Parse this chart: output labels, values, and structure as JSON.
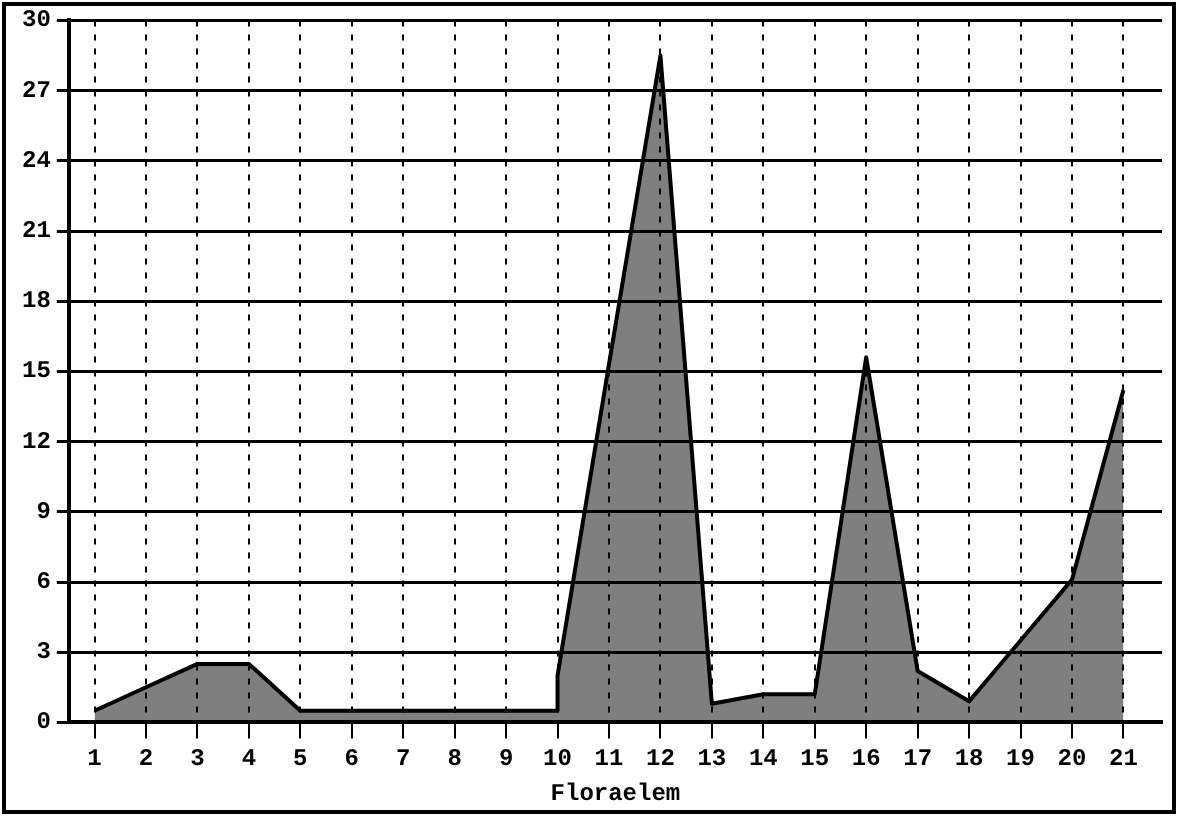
{
  "chart_data": {
    "type": "area",
    "xlabel": "Floraelem",
    "series": [
      {
        "color": "#000000",
        "x": [
          1,
          2,
          3,
          4,
          5,
          6,
          7,
          8,
          9,
          10,
          10,
          11,
          12,
          13,
          14,
          15,
          16,
          17,
          18,
          19,
          20,
          21
        ],
        "values": [
          0.5,
          1.5,
          2.5,
          2.5,
          0.5,
          0.5,
          0.5,
          0.5,
          0.5,
          0.5,
          2,
          15.3,
          28.5,
          0.8,
          1.2,
          1.2,
          15.6,
          2.2,
          0.9,
          3.5,
          6.1,
          14.2
        ]
      }
    ],
    "xlim": [
      0.5,
      21.75
    ],
    "xticks": [
      1,
      2,
      3,
      4,
      5,
      6,
      7,
      8,
      9,
      10,
      11,
      12,
      13,
      14,
      15,
      16,
      17,
      18,
      19,
      20,
      21
    ],
    "ylim": [
      0,
      30
    ],
    "yticks": [
      0,
      3,
      6,
      9,
      12,
      15,
      18,
      21,
      24,
      27,
      30
    ],
    "grid": true,
    "legend": false
  }
}
